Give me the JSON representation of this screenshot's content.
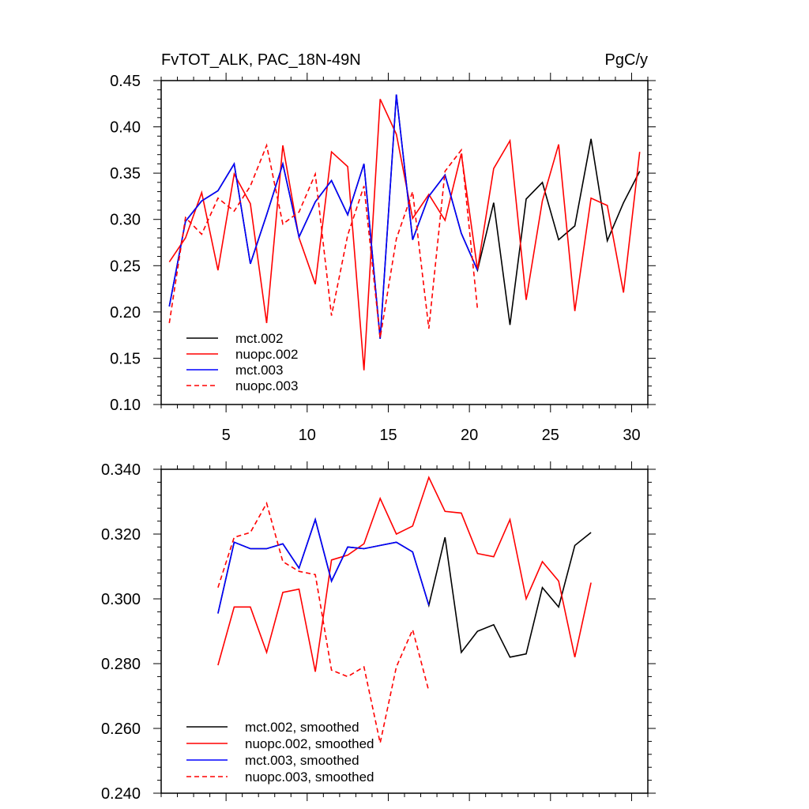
{
  "chart_data": [
    {
      "type": "line",
      "title_left": "FvTOT_ALK, PAC_18N-49N",
      "title_right": "PgC/y",
      "xlim": [
        1,
        31
      ],
      "ylim": [
        0.1,
        0.45
      ],
      "xticks": [
        5,
        10,
        15,
        20,
        25,
        30
      ],
      "xtick_labels": [
        "5",
        "10",
        "15",
        "20",
        "25",
        "30"
      ],
      "yticks": [
        0.1,
        0.15,
        0.2,
        0.25,
        0.3,
        0.35,
        0.4,
        0.45
      ],
      "ytick_labels": [
        "0.10",
        "0.15",
        "0.20",
        "0.25",
        "0.30",
        "0.35",
        "0.40",
        "0.45"
      ],
      "legend_position": "bottom-left",
      "series": [
        {
          "name": "mct.002",
          "color": "#000000",
          "dash": "solid",
          "x": [
            1.5,
            2.5,
            3.5,
            4.5,
            5.5,
            6.5,
            7.5,
            8.5,
            9.5,
            10.5,
            11.5,
            12.5,
            13.5,
            14.5,
            15.5,
            16.5,
            17.5,
            18.5,
            19.5,
            20.5,
            21.5,
            22.5,
            23.5,
            24.5,
            25.5,
            26.5,
            27.5,
            28.5,
            29.5,
            30.5
          ],
          "values": [
            0.206,
            0.298,
            0.32,
            0.331,
            0.36,
            0.252,
            0.305,
            0.36,
            0.281,
            0.319,
            0.342,
            0.305,
            0.36,
            0.171,
            0.435,
            0.278,
            0.325,
            0.348,
            0.285,
            0.245,
            0.318,
            0.186,
            0.322,
            0.34,
            0.278,
            0.293,
            0.387,
            0.277,
            0.318,
            0.352
          ]
        },
        {
          "name": "nuopc.002",
          "color": "#ff0000",
          "dash": "solid",
          "x": [
            1.5,
            2.5,
            3.5,
            4.5,
            5.5,
            6.5,
            7.5,
            8.5,
            9.5,
            10.5,
            11.5,
            12.5,
            13.5,
            14.5,
            15.5,
            16.5,
            17.5,
            18.5,
            19.5,
            20.5,
            21.5,
            22.5,
            23.5,
            24.5,
            25.5,
            26.5,
            27.5,
            28.5,
            29.5,
            30.5
          ],
          "values": [
            0.254,
            0.28,
            0.329,
            0.245,
            0.349,
            0.317,
            0.188,
            0.38,
            0.28,
            0.23,
            0.373,
            0.357,
            0.137,
            0.43,
            0.392,
            0.301,
            0.327,
            0.299,
            0.371,
            0.246,
            0.355,
            0.385,
            0.213,
            0.32,
            0.381,
            0.201,
            0.323,
            0.315,
            0.221,
            0.373
          ]
        },
        {
          "name": "mct.003",
          "color": "#0000ff",
          "dash": "solid",
          "x": [
            1.5,
            2.5,
            3.5,
            4.5,
            5.5,
            6.5,
            7.5,
            8.5,
            9.5,
            10.5,
            11.5,
            12.5,
            13.5,
            14.5,
            15.5,
            16.5,
            17.5,
            18.5,
            19.5,
            20.5
          ],
          "values": [
            0.206,
            0.298,
            0.32,
            0.331,
            0.36,
            0.252,
            0.305,
            0.36,
            0.281,
            0.319,
            0.342,
            0.305,
            0.36,
            0.171,
            0.435,
            0.278,
            0.325,
            0.348,
            0.285,
            0.245
          ]
        },
        {
          "name": "nuopc.003",
          "color": "#ff0000",
          "dash": "dashed",
          "x": [
            1.5,
            2.5,
            3.5,
            4.5,
            5.5,
            6.5,
            7.5,
            8.5,
            9.5,
            10.5,
            11.5,
            12.5,
            13.5,
            14.5,
            15.5,
            16.5,
            17.5,
            18.5,
            19.5,
            20.5
          ],
          "values": [
            0.188,
            0.302,
            0.284,
            0.323,
            0.309,
            0.336,
            0.38,
            0.295,
            0.308,
            0.349,
            0.196,
            0.283,
            0.336,
            0.172,
            0.279,
            0.33,
            0.182,
            0.352,
            0.375,
            0.203
          ]
        }
      ]
    },
    {
      "type": "line",
      "xlim": [
        1,
        31
      ],
      "ylim": [
        0.24,
        0.34
      ],
      "yticks": [
        0.24,
        0.26,
        0.28,
        0.3,
        0.32,
        0.34
      ],
      "ytick_labels": [
        "0.240",
        "0.260",
        "0.280",
        "0.300",
        "0.320",
        "0.340"
      ],
      "legend_position": "bottom-left",
      "series": [
        {
          "name": "mct.002, smoothed",
          "color": "#000000",
          "dash": "solid",
          "x": [
            4.5,
            5.5,
            6.5,
            7.5,
            8.5,
            9.5,
            10.5,
            11.5,
            12.5,
            13.5,
            14.5,
            15.5,
            16.5,
            17.5,
            18.5,
            19.5,
            20.5,
            21.5,
            22.5,
            23.5,
            24.5,
            25.5,
            26.5,
            27.5
          ],
          "values": [
            0.2955,
            0.3175,
            0.3155,
            0.3155,
            0.317,
            0.3095,
            0.3245,
            0.3055,
            0.316,
            0.3155,
            0.3165,
            0.3175,
            0.3145,
            0.298,
            0.319,
            0.2835,
            0.29,
            0.292,
            0.282,
            0.283,
            0.3035,
            0.2975,
            0.3165,
            0.3205
          ]
        },
        {
          "name": "nuopc.002, smoothed",
          "color": "#ff0000",
          "dash": "solid",
          "x": [
            4.5,
            5.5,
            6.5,
            7.5,
            8.5,
            9.5,
            10.5,
            11.5,
            12.5,
            13.5,
            14.5,
            15.5,
            16.5,
            17.5,
            18.5,
            19.5,
            20.5,
            21.5,
            22.5,
            23.5,
            24.5,
            25.5,
            26.5,
            27.5
          ],
          "values": [
            0.2795,
            0.2975,
            0.2975,
            0.2835,
            0.302,
            0.303,
            0.2775,
            0.312,
            0.3135,
            0.317,
            0.331,
            0.32,
            0.3225,
            0.3375,
            0.327,
            0.3265,
            0.314,
            0.313,
            0.3245,
            0.3,
            0.3115,
            0.3055,
            0.282,
            0.305
          ]
        },
        {
          "name": "mct.003, smoothed",
          "color": "#0000ff",
          "dash": "solid",
          "x": [
            4.5,
            5.5,
            6.5,
            7.5,
            8.5,
            9.5,
            10.5,
            11.5,
            12.5,
            13.5,
            14.5,
            15.5,
            16.5,
            17.5
          ],
          "values": [
            0.2955,
            0.3175,
            0.3155,
            0.3155,
            0.317,
            0.3095,
            0.3245,
            0.3055,
            0.316,
            0.3155,
            0.3165,
            0.3175,
            0.3145,
            0.298
          ]
        },
        {
          "name": "nuopc.003, smoothed",
          "color": "#ff0000",
          "dash": "dashed",
          "x": [
            4.5,
            5.5,
            6.5,
            7.5,
            8.5,
            9.5,
            10.5,
            11.5,
            12.5,
            13.5,
            14.5,
            15.5,
            16.5,
            17.5
          ],
          "values": [
            0.3035,
            0.319,
            0.3205,
            0.3295,
            0.3115,
            0.3085,
            0.3075,
            0.278,
            0.276,
            0.279,
            0.2555,
            0.279,
            0.2905,
            0.2715
          ]
        }
      ]
    }
  ]
}
